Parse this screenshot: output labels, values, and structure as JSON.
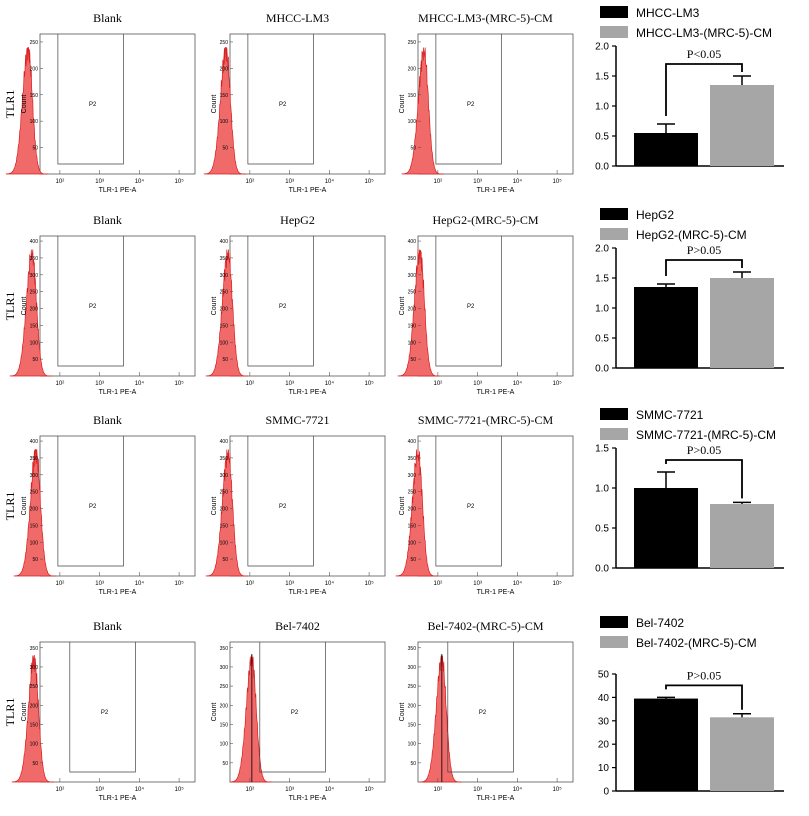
{
  "figure": {
    "row_label": "TLR1",
    "flow_axis": {
      "xlabel": "TLR-1 PE-A",
      "ylabel": "Count",
      "gate_label": "P2",
      "xtick_labels": [
        "10²",
        "10³",
        "10⁴",
        "10⁵"
      ]
    },
    "colors": {
      "histogram_fill": "#f06a6a",
      "histogram_stroke": "#d81e1e",
      "bar_dark": "#000000",
      "bar_gray": "#a6a6a6"
    }
  },
  "rows": [
    {
      "flow_titles": [
        "Blank",
        "MHCC-LM3",
        "MHCC-LM3-(MRC-5)-CM"
      ],
      "flow_yticks": [
        "50",
        "100",
        "150",
        "200",
        "250"
      ],
      "flow_peaks": [
        1.2,
        1.4,
        1.65
      ],
      "flow_gate_decade": 1.95,
      "chart": {
        "type": "bar",
        "categories": [
          "MHCC-LM3",
          "MHCC-LM3-(MRC-5)-CM"
        ],
        "values": [
          0.55,
          1.35
        ],
        "errors": [
          0.15,
          0.15
        ],
        "ylim": [
          0,
          2.0
        ],
        "yticks": [
          "0.0",
          "0.5",
          "1.0",
          "1.5",
          "2.0"
        ],
        "ytick_values": [
          0,
          0.5,
          1.0,
          1.5,
          2.0
        ],
        "annotation": "P<0.05",
        "legend": [
          "MHCC-LM3",
          "MHCC-LM3-(MRC-5)-CM"
        ]
      }
    },
    {
      "flow_titles": [
        "Blank",
        "HepG2",
        "HepG2-(MRC-5)-CM"
      ],
      "flow_yticks": [
        "50",
        "100",
        "150",
        "200",
        "250",
        "300",
        "350",
        "400"
      ],
      "flow_peaks": [
        1.3,
        1.45,
        1.55
      ],
      "flow_gate_decade": 1.95,
      "chart": {
        "type": "bar",
        "categories": [
          "HepG2",
          "HepG2-(MRC-5)-CM"
        ],
        "values": [
          1.35,
          1.5
        ],
        "errors": [
          0.05,
          0.1
        ],
        "ylim": [
          0,
          2.0
        ],
        "yticks": [
          "0.0",
          "0.5",
          "1.0",
          "1.5",
          "2.0"
        ],
        "ytick_values": [
          0,
          0.5,
          1.0,
          1.5,
          2.0
        ],
        "annotation": "P>0.05",
        "legend": [
          "HepG2",
          "HepG2-(MRC-5)-CM"
        ]
      }
    },
    {
      "flow_titles": [
        "Blank",
        "SMMC-7721",
        "SMMC-7721-(MRC-5)-CM"
      ],
      "flow_yticks": [
        "50",
        "100",
        "150",
        "200",
        "250",
        "300",
        "350",
        "400"
      ],
      "flow_peaks": [
        1.4,
        1.45,
        1.5
      ],
      "flow_gate_decade": 1.95,
      "chart": {
        "type": "bar",
        "categories": [
          "SMMC-7721",
          "SMMC-7721-(MRC-5)-CM"
        ],
        "values": [
          1.0,
          0.8
        ],
        "errors": [
          0.2,
          0.02
        ],
        "ylim": [
          0,
          1.5
        ],
        "yticks": [
          "0.0",
          "0.5",
          "1.0",
          "1.5"
        ],
        "ytick_values": [
          0,
          0.5,
          1.0,
          1.5
        ],
        "annotation": "P>0.05",
        "legend": [
          "SMMC-7721",
          "SMMC-7721-(MRC-5)-CM"
        ]
      }
    },
    {
      "flow_titles": [
        "Blank",
        "Bel-7402",
        "Bel-7402-(MRC-5)-CM"
      ],
      "flow_yticks": [
        "50",
        "100",
        "150",
        "200",
        "250",
        "300",
        "350"
      ],
      "flow_peaks": [
        1.35,
        2.05,
        2.1
      ],
      "flow_gate_decade": 2.25,
      "chart": {
        "type": "bar",
        "categories": [
          "Bel-7402",
          "Bel-7402-(MRC-5)-CM"
        ],
        "values": [
          39.5,
          31.5
        ],
        "errors": [
          0.5,
          1.5
        ],
        "ylim": [
          0,
          50
        ],
        "yticks": [
          "0",
          "10",
          "20",
          "30",
          "40",
          "50"
        ],
        "ytick_values": [
          0,
          10,
          20,
          30,
          40,
          50
        ],
        "annotation": "P>0.05",
        "legend": [
          "Bel-7402",
          "Bel-7402-(MRC-5)-CM"
        ]
      }
    }
  ]
}
